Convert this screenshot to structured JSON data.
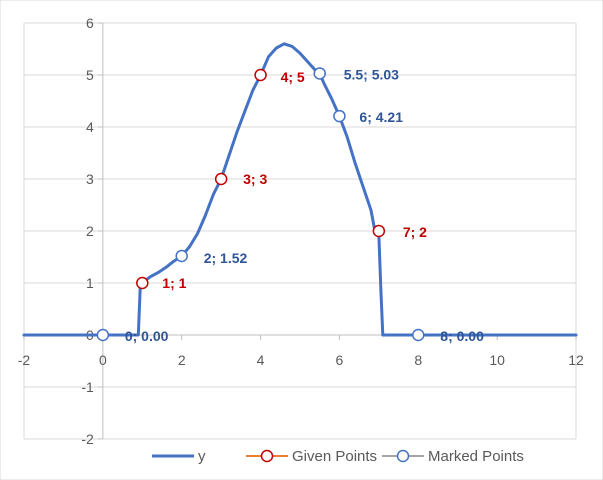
{
  "chart_data": {
    "type": "line",
    "xlim": [
      -2,
      12
    ],
    "ylim": [
      -2,
      6
    ],
    "x_ticks": [
      -2,
      0,
      2,
      4,
      6,
      8,
      10,
      12
    ],
    "y_ticks": [
      -2,
      -1,
      0,
      1,
      2,
      3,
      4,
      5,
      6
    ],
    "x_tick_labels": [
      "-2",
      "0",
      "2",
      "4",
      "6",
      "8",
      "10",
      "12"
    ],
    "y_tick_labels": [
      "-2",
      "-1",
      "0",
      "1",
      "2",
      "3",
      "4",
      "5",
      "6"
    ],
    "grid": "horizontal",
    "legend_position": "bottom",
    "colors": {
      "y": "#4472C4",
      "given": "#ED7D31",
      "given_marker": "#C00000",
      "marked": "#A5A5A5",
      "marked_marker": "#4472C4",
      "given_label": "#C00000",
      "marked_label": "#2F5597"
    },
    "series": [
      {
        "name": "y",
        "kind": "line",
        "x": [
          -2,
          0.9,
          0.95,
          1.0,
          1.2,
          1.4,
          1.6,
          1.8,
          2.0,
          2.2,
          2.4,
          2.6,
          2.8,
          3.0,
          3.2,
          3.4,
          3.6,
          3.8,
          4.0,
          4.2,
          4.4,
          4.6,
          4.8,
          5.0,
          5.2,
          5.4,
          5.5,
          5.6,
          5.8,
          6.0,
          6.2,
          6.4,
          6.6,
          6.8,
          6.9,
          7.0,
          7.05,
          7.1,
          12
        ],
        "y": [
          0,
          0,
          0.95,
          1.0,
          1.12,
          1.2,
          1.3,
          1.42,
          1.52,
          1.7,
          1.95,
          2.3,
          2.7,
          3.0,
          3.45,
          3.9,
          4.3,
          4.7,
          5.0,
          5.35,
          5.52,
          5.6,
          5.55,
          5.42,
          5.25,
          5.08,
          5.03,
          4.85,
          4.55,
          4.21,
          3.8,
          3.3,
          2.85,
          2.4,
          2.0,
          1.9,
          0.9,
          0,
          0
        ]
      },
      {
        "name": "Given Points",
        "kind": "markers",
        "x": [
          1,
          3,
          4,
          7
        ],
        "y": [
          1,
          3,
          5,
          2
        ]
      },
      {
        "name": "Marked Points",
        "kind": "markers",
        "x": [
          0,
          2,
          5.5,
          6,
          8
        ],
        "y": [
          0,
          1.52,
          5.03,
          4.21,
          0
        ]
      }
    ],
    "annotations": [
      {
        "x": 1,
        "y": 1,
        "text": "1; 1",
        "series": "Given Points"
      },
      {
        "x": 3,
        "y": 3,
        "text": "3; 3",
        "series": "Given Points"
      },
      {
        "x": 4,
        "y": 5,
        "text": "4; 5",
        "series": "Given Points"
      },
      {
        "x": 7,
        "y": 2,
        "text": "7; 2",
        "series": "Given Points"
      },
      {
        "x": 0,
        "y": 0,
        "text": "0; 0.00",
        "series": "Marked Points"
      },
      {
        "x": 2,
        "y": 1.52,
        "text": "2; 1.52",
        "series": "Marked Points"
      },
      {
        "x": 5.5,
        "y": 5.03,
        "text": "5.5; 5.03",
        "series": "Marked Points"
      },
      {
        "x": 6,
        "y": 4.21,
        "text": "6; 4.21",
        "series": "Marked Points"
      },
      {
        "x": 8,
        "y": 0,
        "text": "8; 0.00",
        "series": "Marked Points"
      }
    ],
    "legend": [
      "y",
      "Given Points",
      "Marked Points"
    ]
  }
}
